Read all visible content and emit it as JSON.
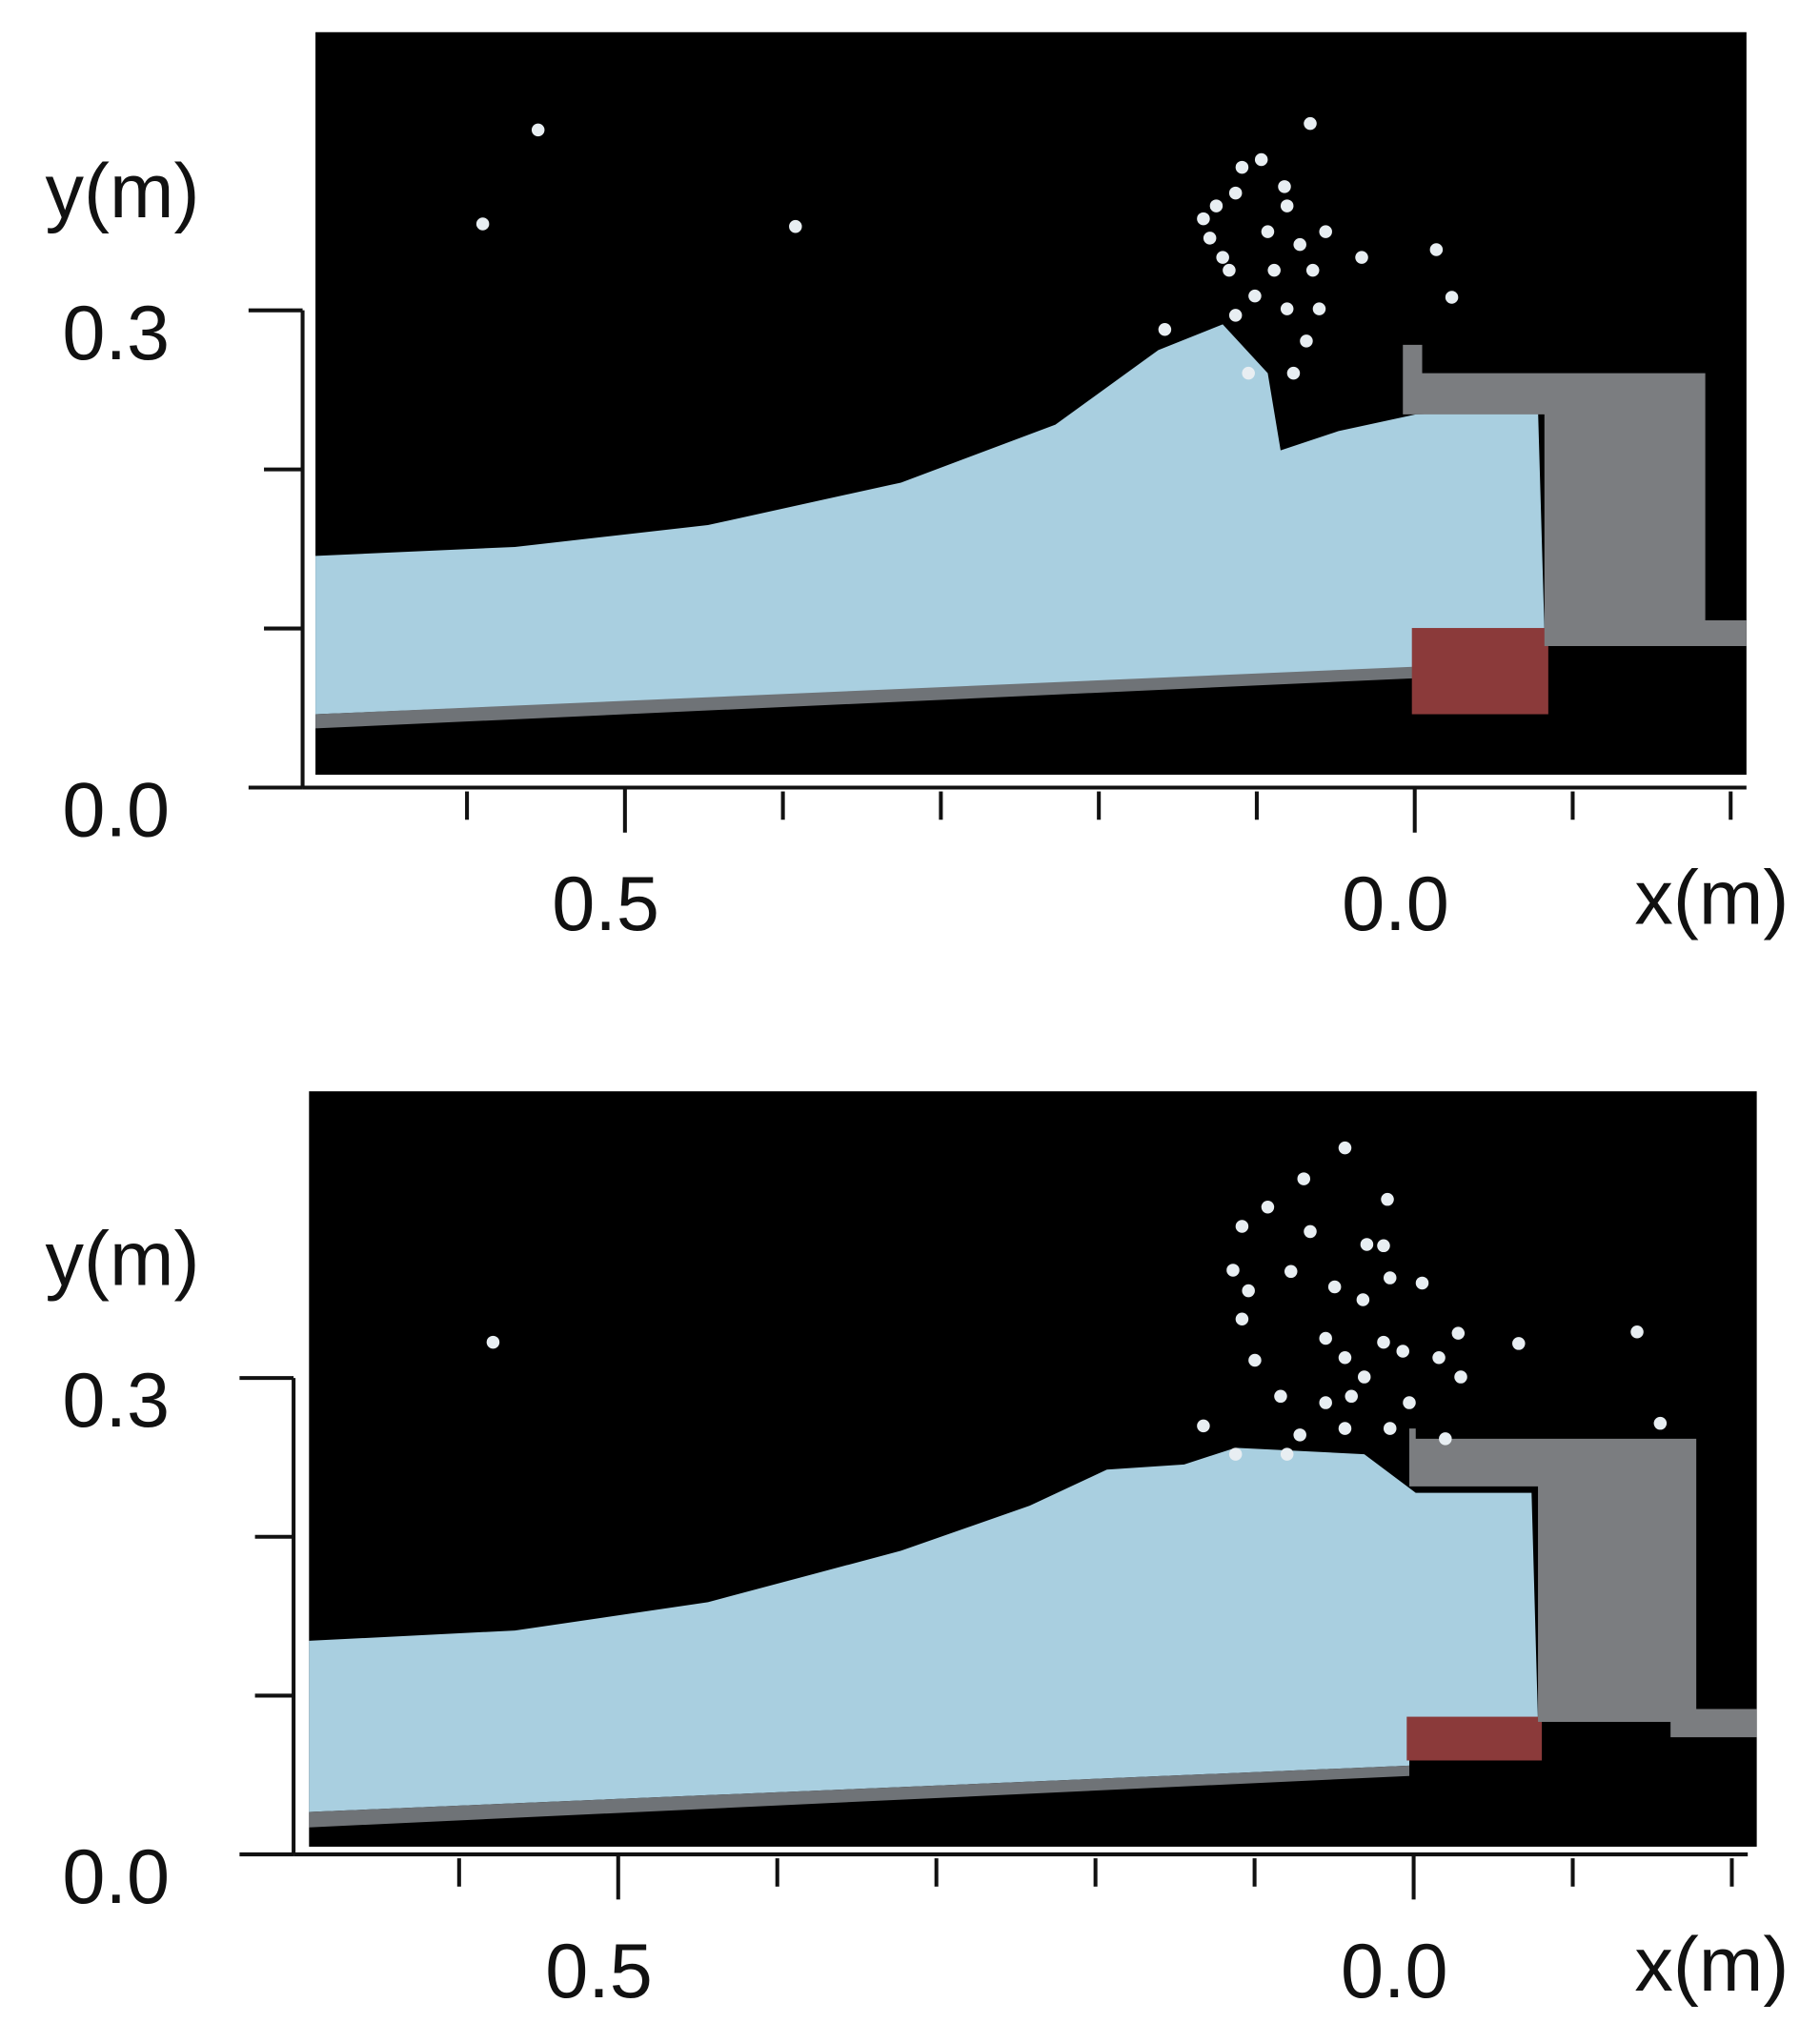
{
  "chart_data": [
    {
      "type": "simulation",
      "xlabel": "x(m)",
      "ylabel": "y(m)",
      "xlim": [
        0.7,
        -0.21
      ],
      "ylim": [
        0,
        0.47
      ],
      "xticks": [
        0.5,
        {
          "value": 0,
          "label": "0.0"
        }
      ],
      "xminorticks": [
        0.6,
        0.4,
        0.3,
        0.2,
        0.1,
        -0.1,
        -0.2
      ],
      "yticks": [
        {
          "value": 0,
          "label": "0.0"
        },
        0.3
      ],
      "yminorticks": [
        0.1,
        0.2
      ]
    },
    {
      "type": "simulation",
      "xlabel": "x(m)",
      "ylabel": "y(m)",
      "xlim": [
        0.7,
        -0.21
      ],
      "ylim": [
        0,
        0.47
      ],
      "xticks": [
        0.5,
        {
          "value": 0,
          "label": "0.0"
        }
      ],
      "xminorticks": [
        0.6,
        0.4,
        0.3,
        0.2,
        0.1,
        -0.1,
        -0.2
      ],
      "yticks": [
        {
          "value": 0,
          "label": "0.0"
        },
        0.3
      ],
      "yminorticks": [
        0.1,
        0.2
      ]
    }
  ]
}
